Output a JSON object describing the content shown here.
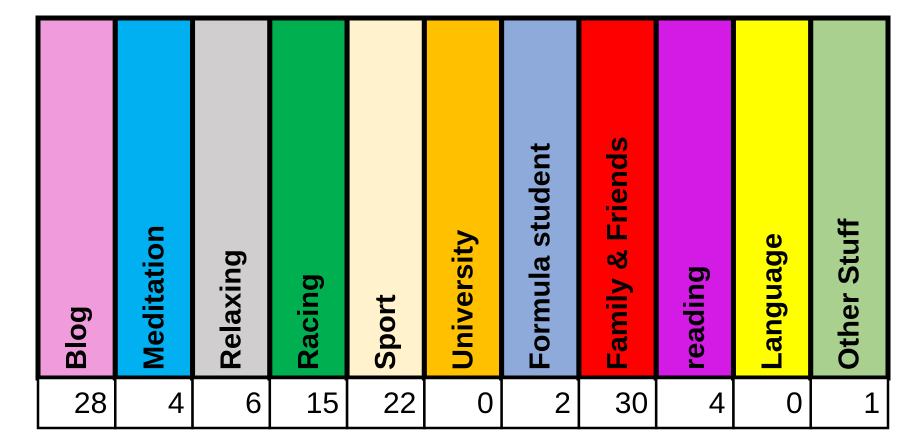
{
  "table": {
    "columns": [
      {
        "label": "Blog",
        "value": 28,
        "color": "#f09cdc"
      },
      {
        "label": "Meditation",
        "value": 4,
        "color": "#00b0f0"
      },
      {
        "label": "Relaxing",
        "value": 6,
        "color": "#d0cece"
      },
      {
        "label": "Racing",
        "value": 15,
        "color": "#00b050"
      },
      {
        "label": "Sport",
        "value": 22,
        "color": "#fff2cc"
      },
      {
        "label": "University",
        "value": 0,
        "color": "#ffc000"
      },
      {
        "label": "Formula student",
        "value": 2,
        "color": "#8eaadb"
      },
      {
        "label": "Family & Friends",
        "value": 30,
        "color": "#ff0000"
      },
      {
        "label": "reading",
        "value": 4,
        "color": "#d41be6"
      },
      {
        "label": "Language",
        "value": 0,
        "color": "#ffff00"
      },
      {
        "label": "Other Stuff",
        "value": 1,
        "color": "#a9d08e"
      }
    ]
  }
}
